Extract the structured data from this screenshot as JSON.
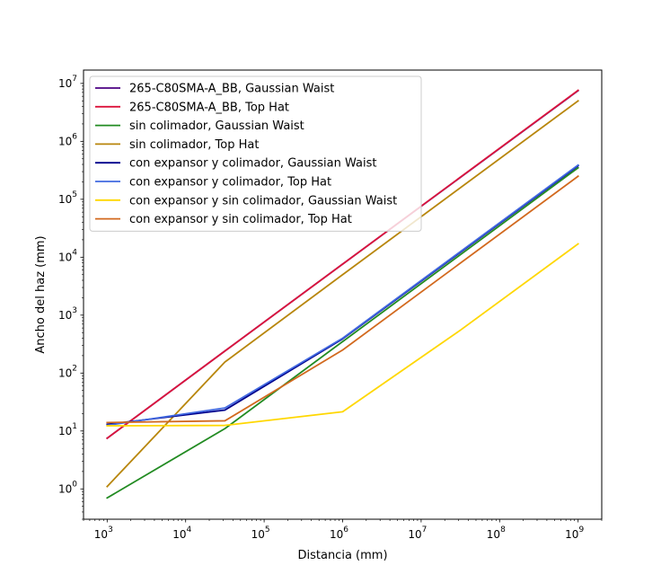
{
  "chart_data": {
    "type": "line",
    "title": "",
    "xlabel": "Distancia (mm)",
    "ylabel": "Ancho del haz (mm)",
    "xscale": "log",
    "yscale": "log",
    "xlim": [
      500,
      2000000000
    ],
    "ylim": [
      0.3,
      17000000
    ],
    "xticks": [
      {
        "value": 1000,
        "mant": "10",
        "exp": "3"
      },
      {
        "value": 10000,
        "mant": "10",
        "exp": "4"
      },
      {
        "value": 100000,
        "mant": "10",
        "exp": "5"
      },
      {
        "value": 1000000,
        "mant": "10",
        "exp": "6"
      },
      {
        "value": 10000000,
        "mant": "10",
        "exp": "7"
      },
      {
        "value": 100000000,
        "mant": "10",
        "exp": "8"
      },
      {
        "value": 1000000000,
        "mant": "10",
        "exp": "9"
      }
    ],
    "yticks": [
      {
        "value": 1,
        "mant": "10",
        "exp": "0"
      },
      {
        "value": 10,
        "mant": "10",
        "exp": "1"
      },
      {
        "value": 100,
        "mant": "10",
        "exp": "2"
      },
      {
        "value": 1000,
        "mant": "10",
        "exp": "3"
      },
      {
        "value": 10000,
        "mant": "10",
        "exp": "4"
      },
      {
        "value": 100000,
        "mant": "10",
        "exp": "5"
      },
      {
        "value": 1000000,
        "mant": "10",
        "exp": "6"
      },
      {
        "value": 10000000,
        "mant": "10",
        "exp": "7"
      }
    ],
    "grid": false,
    "legend_position": "top-left",
    "series": [
      {
        "name": "265-C80SMA-A_BB, Gaussian Waist",
        "color": "#4b0082",
        "points": [
          [
            1000,
            7.5
          ],
          [
            31623,
            240
          ],
          [
            1000000,
            7600
          ],
          [
            1000000000,
            7500000
          ]
        ]
      },
      {
        "name": "265-C80SMA-A_BB, Top Hat",
        "color": "#dc143c",
        "points": [
          [
            1000,
            7.5
          ],
          [
            31623,
            240
          ],
          [
            1000000,
            7600
          ],
          [
            1000000000,
            7600000
          ]
        ]
      },
      {
        "name": "sin colimador, Gaussian Waist",
        "color": "#228b22",
        "points": [
          [
            1000,
            0.7
          ],
          [
            31623,
            11
          ],
          [
            1000000,
            350
          ],
          [
            1000000000,
            350000
          ]
        ]
      },
      {
        "name": "sin colimador, Top Hat",
        "color": "#b8860b",
        "points": [
          [
            1000,
            1.1
          ],
          [
            31623,
            155
          ],
          [
            1000000,
            5000
          ],
          [
            1000000000,
            5000000
          ]
        ]
      },
      {
        "name": "con expansor y colimador, Gaussian Waist",
        "color": "#00008b",
        "points": [
          [
            1000,
            13
          ],
          [
            31623,
            23
          ],
          [
            1000000,
            390
          ],
          [
            1000000000,
            380000
          ]
        ]
      },
      {
        "name": "con expansor y colimador, Top Hat",
        "color": "#4169e1",
        "points": [
          [
            1000,
            12.5
          ],
          [
            31623,
            25
          ],
          [
            1000000,
            400
          ],
          [
            1000000000,
            390000
          ]
        ]
      },
      {
        "name": "con expansor y sin colimador, Gaussian Waist",
        "color": "#ffd700",
        "points": [
          [
            1000,
            12.3
          ],
          [
            31623,
            12.5
          ],
          [
            1000000,
            21.5
          ],
          [
            31623000,
            550
          ],
          [
            1000000000,
            17000
          ]
        ]
      },
      {
        "name": "con expansor y sin colimador, Top Hat",
        "color": "#d2691e",
        "points": [
          [
            1000,
            14
          ],
          [
            31623,
            15
          ],
          [
            1000000,
            250
          ],
          [
            1000000000,
            250000
          ]
        ]
      }
    ]
  }
}
